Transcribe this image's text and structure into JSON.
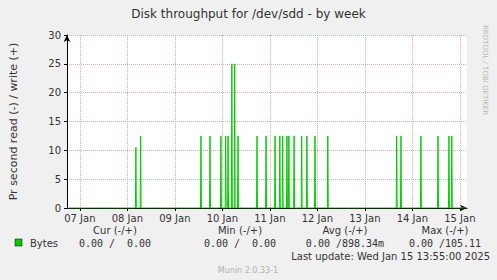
{
  "chart_data": {
    "type": "line",
    "title": "Disk throughput for /dev/sdd - by week",
    "y_label": "Pr second read (-) / write (+)",
    "xlim": [
      6.73,
      15.15
    ],
    "xticks": [
      {
        "value": 7,
        "label": "07 Jan"
      },
      {
        "value": 8,
        "label": "08 Jan"
      },
      {
        "value": 9,
        "label": "09 Jan"
      },
      {
        "value": 10,
        "label": "10 Jan"
      },
      {
        "value": 11,
        "label": "11 Jan"
      },
      {
        "value": 12,
        "label": "12 Jan"
      },
      {
        "value": 13,
        "label": "13 Jan"
      },
      {
        "value": 14,
        "label": "14 Jan"
      },
      {
        "value": 15,
        "label": "15 Jan"
      }
    ],
    "ylim": [
      0,
      30
    ],
    "yticks": [
      0,
      5,
      10,
      15,
      20,
      25,
      30
    ],
    "grid": true,
    "series": [
      {
        "name": "Bytes",
        "color": "#00cc00",
        "x": [
          6.73,
          8.17,
          8.18,
          8.19,
          8.27,
          8.28,
          8.29,
          9.54,
          9.55,
          9.56,
          9.73,
          9.74,
          9.75,
          9.96,
          9.97,
          9.98,
          10.06,
          10.07,
          10.08,
          10.11,
          10.12,
          10.13,
          10.19,
          10.2,
          10.21,
          10.25,
          10.26,
          10.27,
          10.32,
          10.33,
          10.34,
          10.72,
          10.73,
          10.74,
          10.91,
          10.92,
          10.93,
          11.1,
          11.11,
          11.12,
          11.2,
          11.21,
          11.22,
          11.26,
          11.27,
          11.28,
          11.35,
          11.36,
          11.37,
          11.39,
          11.4,
          11.41,
          11.5,
          11.51,
          11.52,
          11.66,
          11.67,
          11.68,
          11.77,
          11.78,
          11.79,
          11.94,
          11.95,
          11.96,
          12.21,
          12.22,
          12.23,
          13.66,
          13.67,
          13.68,
          13.75,
          13.76,
          13.77,
          14.17,
          14.18,
          14.19,
          14.53,
          14.54,
          14.55,
          14.76,
          14.77,
          14.78,
          14.82,
          14.83,
          14.84,
          15.15
        ],
        "values": [
          0,
          0,
          10.5,
          0,
          0,
          12.5,
          0,
          0,
          12.5,
          0,
          0,
          12.5,
          0,
          0,
          12.5,
          0,
          0,
          12.5,
          0,
          0,
          12.5,
          0,
          0,
          25,
          0,
          0,
          25,
          0,
          0,
          12.5,
          0,
          0,
          12.5,
          0,
          0,
          12.5,
          0,
          0,
          12.5,
          0,
          0,
          12.5,
          0,
          0,
          12.5,
          0,
          0,
          12.5,
          0,
          0,
          12.5,
          0,
          0,
          12.5,
          0,
          0,
          12.5,
          0,
          0,
          12.5,
          0,
          0,
          12.5,
          0,
          0,
          12.5,
          0,
          0,
          12.5,
          0,
          0,
          12.5,
          0,
          0,
          12.5,
          0,
          0,
          12.5,
          0,
          0,
          12.5,
          0,
          0,
          12.5,
          0,
          0
        ]
      }
    ],
    "legend_table": {
      "headers": [
        "Cur (-/+)",
        "Min (-/+)",
        "Avg (-/+)",
        "Max (-/+)"
      ],
      "rows": [
        {
          "name": "Bytes",
          "cells": [
            "0.00 /  0.00",
            "0.00 /  0.00",
            "0.00 /898.34m",
            "0.00 /105.11"
          ]
        }
      ]
    },
    "footer": "Last update: Wed Jan 15 13:55:00 2025",
    "credit": "Munin 2.0.33-1",
    "watermark": "RRDTOOL / TOBI OETIKER"
  }
}
